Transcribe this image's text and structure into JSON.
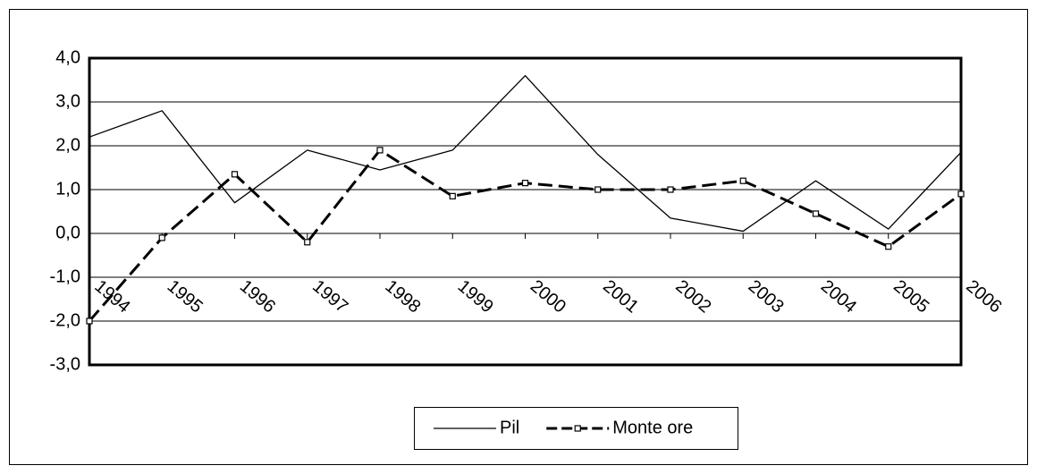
{
  "chart_data": {
    "type": "line",
    "categories": [
      "1994",
      "1995",
      "1996",
      "1997",
      "1998",
      "1999",
      "2000",
      "2001",
      "2002",
      "2003",
      "2004",
      "2005",
      "2006"
    ],
    "series": [
      {
        "name": "Pil",
        "color": "#000000",
        "style": "solid",
        "marker": false,
        "values": [
          2.2,
          2.8,
          0.7,
          1.9,
          1.45,
          1.9,
          3.6,
          1.8,
          0.35,
          0.05,
          1.2,
          0.1,
          1.85
        ]
      },
      {
        "name": "Monte ore",
        "color": "#000000",
        "style": "dashed",
        "marker": true,
        "values": [
          -2.0,
          -0.1,
          1.35,
          -0.2,
          1.9,
          0.85,
          1.15,
          1.0,
          1.0,
          1.2,
          0.45,
          -0.3,
          0.9
        ]
      }
    ],
    "ylim": [
      -3,
      4
    ],
    "yticks": [
      {
        "value": -3,
        "label": "-3,0"
      },
      {
        "value": -2,
        "label": "-2,0"
      },
      {
        "value": -1,
        "label": "-1,0"
      },
      {
        "value": 0,
        "label": "0,0"
      },
      {
        "value": 1,
        "label": "1,0"
      },
      {
        "value": 2,
        "label": "2,0"
      },
      {
        "value": 3,
        "label": "3,0"
      },
      {
        "value": 4,
        "label": "4,0"
      }
    ],
    "grid": true,
    "legend": "bottom"
  }
}
